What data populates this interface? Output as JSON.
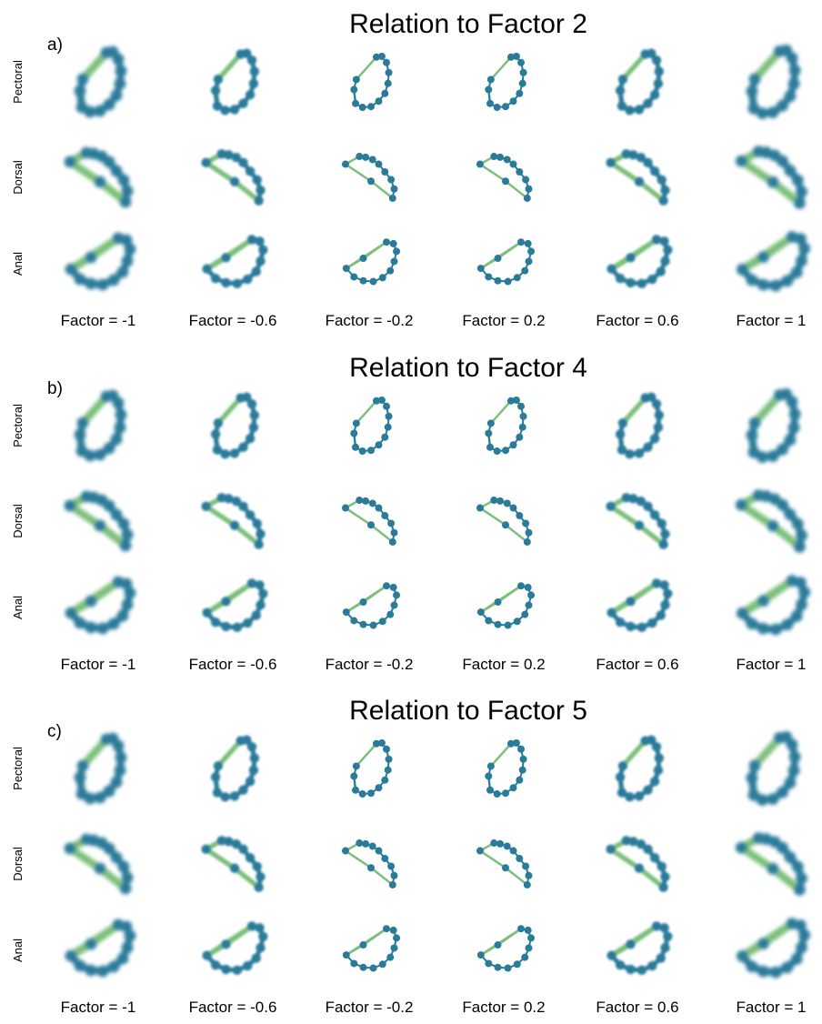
{
  "panels": [
    {
      "label": "a)",
      "title": "Relation to Factor 2",
      "rows": [
        "Pectoral",
        "Dorsal",
        "Anal"
      ],
      "columns": [
        "Factor = -1",
        "Factor = -0.6",
        "Factor = -0.2",
        "Factor = 0.2",
        "Factor = 0.6",
        "Factor = 1"
      ]
    },
    {
      "label": "b)",
      "title": "Relation to Factor 4",
      "rows": [
        "Pectoral",
        "Dorsal",
        "Anal"
      ],
      "columns": [
        "Factor = -1",
        "Factor = -0.6",
        "Factor = -0.2",
        "Factor = 0.2",
        "Factor = 0.6",
        "Factor = 1"
      ]
    },
    {
      "label": "c)",
      "title": "Relation to Factor 5",
      "rows": [
        "Pectoral",
        "Dorsal",
        "Anal"
      ],
      "columns": [
        "Factor = -1",
        "Factor = -0.6",
        "Factor = -0.2",
        "Factor = 0.2",
        "Factor = 0.6",
        "Factor = 1"
      ]
    }
  ]
}
